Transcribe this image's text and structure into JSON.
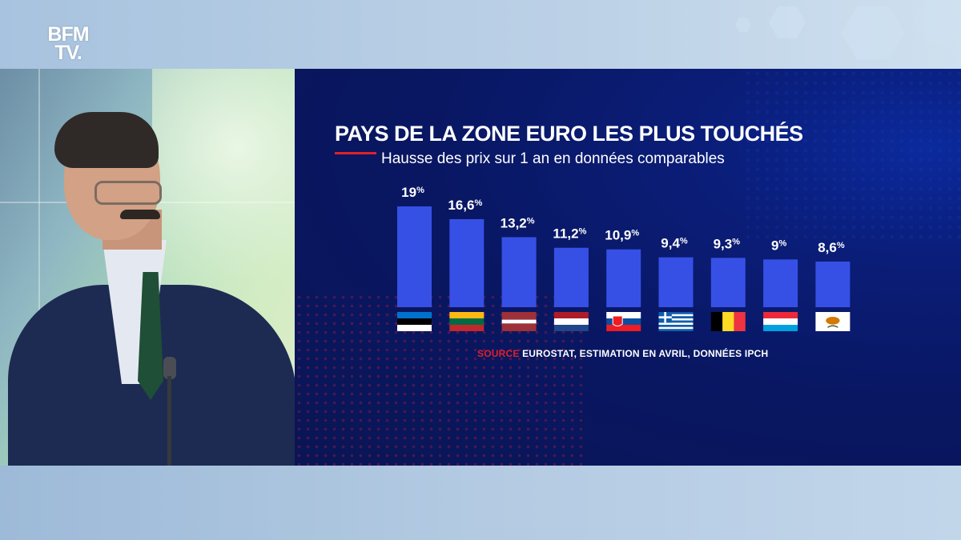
{
  "logo": {
    "line1": "BFM",
    "line2": "TV."
  },
  "colors": {
    "bar": "#3650e6",
    "accent": "#e0202a",
    "panel": "#0a1a6e"
  },
  "chart_data": {
    "type": "bar",
    "title": "PAYS DE LA ZONE EURO LES PLUS TOUCHÉS",
    "subtitle": "Hausse des prix sur 1 an en données comparables",
    "categories": [
      "Estonia",
      "Lithuania",
      "Latvia",
      "Netherlands",
      "Slovakia",
      "Greece",
      "Belgium",
      "Luxembourg",
      "Cyprus"
    ],
    "flags": [
      "estonia-flag-icon",
      "lithuania-flag-icon",
      "latvia-flag-icon",
      "netherlands-flag-icon",
      "slovakia-flag-icon",
      "greece-flag-icon",
      "belgium-flag-icon",
      "luxembourg-flag-icon",
      "cyprus-flag-icon"
    ],
    "values": [
      19,
      16.6,
      13.2,
      11.2,
      10.9,
      9.4,
      9.3,
      9,
      8.6
    ],
    "value_labels": [
      "19",
      "16,6",
      "13,2",
      "11,2",
      "10,9",
      "9,4",
      "9,3",
      "9",
      "8,6"
    ],
    "unit": "%",
    "xlabel": "",
    "ylabel": "",
    "ylim": [
      0,
      19
    ],
    "grid": false,
    "source_label": "SOURCE",
    "source_text": "EUROSTAT, ESTIMATION EN AVRIL, DONNÉES IPCH"
  }
}
